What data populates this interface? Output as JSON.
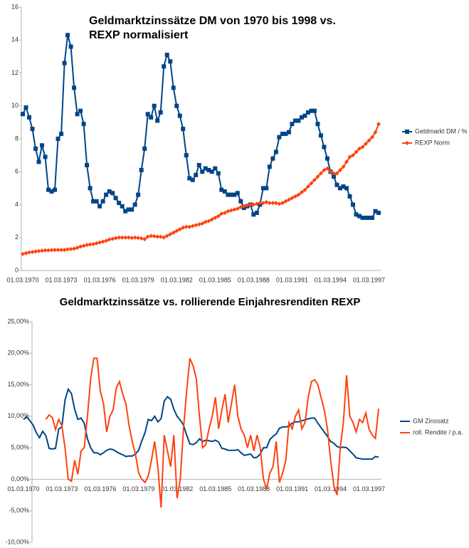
{
  "chart_data": [
    {
      "type": "line",
      "title": [
        "Geldmarktzinssätze DM von 1970 bis 1998 vs.",
        "REXP normalisiert"
      ],
      "categories": [
        "01.03.1970",
        null,
        null,
        null,
        null,
        null,
        null,
        null,
        null,
        null,
        null,
        null,
        "01.03.1973",
        null,
        null,
        null,
        null,
        null,
        null,
        null,
        null,
        null,
        null,
        null,
        "01.03.1976",
        null,
        null,
        null,
        null,
        null,
        null,
        null,
        null,
        null,
        null,
        null,
        "01.03.1979",
        null,
        null,
        null,
        null,
        null,
        null,
        null,
        null,
        null,
        null,
        null,
        "01.03.1982",
        null,
        null,
        null,
        null,
        null,
        null,
        null,
        null,
        null,
        null,
        null,
        "01.03.1985",
        null,
        null,
        null,
        null,
        null,
        null,
        null,
        null,
        null,
        null,
        null,
        "01.03.1988",
        null,
        null,
        null,
        null,
        null,
        null,
        null,
        null,
        null,
        null,
        null,
        "01.03.1991",
        null,
        null,
        null,
        null,
        null,
        null,
        null,
        null,
        null,
        null,
        null,
        "01.03.1994",
        null,
        null,
        null,
        null,
        null,
        null,
        null,
        null,
        null,
        null,
        null,
        "01.03.1997",
        null,
        null,
        null
      ],
      "series": [
        {
          "name": "Geldmarkt DM / %",
          "color": "#004586",
          "marker": "square",
          "values": [
            9.5,
            9.9,
            9.3,
            8.6,
            7.4,
            6.6,
            7.6,
            6.9,
            4.9,
            4.8,
            4.9,
            8.0,
            8.3,
            12.6,
            14.3,
            13.6,
            11.1,
            9.5,
            9.7,
            8.9,
            6.4,
            5.0,
            4.2,
            4.2,
            3.9,
            4.2,
            4.6,
            4.8,
            4.7,
            4.4,
            4.1,
            3.9,
            3.6,
            3.7,
            3.7,
            4.0,
            4.6,
            6.1,
            7.4,
            9.5,
            9.3,
            10.0,
            9.1,
            9.6,
            12.4,
            13.1,
            12.7,
            11.1,
            10.0,
            9.4,
            8.6,
            7.0,
            5.6,
            5.5,
            5.8,
            6.4,
            6.0,
            6.2,
            6.1,
            6.0,
            6.2,
            5.9,
            4.9,
            4.8,
            4.6,
            4.6,
            4.6,
            4.7,
            4.2,
            3.8,
            3.9,
            4.0,
            3.4,
            3.5,
            4.0,
            5.0,
            5.0,
            6.3,
            6.8,
            7.2,
            8.1,
            8.3,
            8.3,
            8.4,
            8.9,
            9.1,
            9.1,
            9.3,
            9.4,
            9.6,
            9.7,
            9.7,
            8.9,
            8.2,
            7.5,
            6.8,
            6.0,
            5.7,
            5.2,
            5.0,
            5.1,
            5.0,
            4.5,
            4.0,
            3.4,
            3.3,
            3.2,
            3.2,
            3.2,
            3.2,
            3.6,
            3.5
          ]
        },
        {
          "name": "REXP Norm",
          "color": "#ff420e",
          "marker": "diamond",
          "values": [
            1.0,
            1.05,
            1.1,
            1.12,
            1.15,
            1.18,
            1.2,
            1.22,
            1.22,
            1.24,
            1.25,
            1.25,
            1.25,
            1.25,
            1.28,
            1.3,
            1.32,
            1.38,
            1.45,
            1.5,
            1.55,
            1.58,
            1.6,
            1.65,
            1.7,
            1.75,
            1.8,
            1.88,
            1.92,
            1.96,
            2.0,
            2.0,
            2.0,
            2.0,
            1.98,
            2.0,
            1.98,
            1.95,
            1.9,
            2.05,
            2.1,
            2.08,
            2.05,
            2.05,
            2.0,
            2.1,
            2.2,
            2.3,
            2.4,
            2.5,
            2.6,
            2.65,
            2.65,
            2.7,
            2.75,
            2.8,
            2.85,
            2.95,
            3.0,
            3.1,
            3.2,
            3.3,
            3.45,
            3.5,
            3.6,
            3.65,
            3.7,
            3.75,
            3.85,
            3.9,
            3.95,
            4.0,
            4.0,
            4.05,
            4.1,
            4.1,
            4.15,
            4.1,
            4.1,
            4.1,
            4.05,
            4.1,
            4.2,
            4.3,
            4.4,
            4.5,
            4.6,
            4.75,
            4.9,
            5.1,
            5.3,
            5.5,
            5.7,
            5.9,
            6.1,
            6.2,
            6.0,
            5.9,
            5.9,
            6.1,
            6.3,
            6.6,
            6.9,
            7.0,
            7.2,
            7.4,
            7.5,
            7.7,
            7.9,
            8.1,
            8.4,
            8.9
          ]
        }
      ],
      "ylim": [
        0,
        16
      ],
      "yticks": [
        0,
        2,
        4,
        6,
        8,
        10,
        12,
        14,
        16
      ],
      "grid": false
    },
    {
      "type": "line",
      "title": [
        "Geldmarktzinssätze vs. rollierende Einjahresrenditen REXP"
      ],
      "categories": [
        "01.03.1970",
        null,
        null,
        null,
        null,
        null,
        null,
        null,
        null,
        null,
        null,
        null,
        "01.03.1973",
        null,
        null,
        null,
        null,
        null,
        null,
        null,
        null,
        null,
        null,
        null,
        "01.03.1976",
        null,
        null,
        null,
        null,
        null,
        null,
        null,
        null,
        null,
        null,
        null,
        "01.03.1979",
        null,
        null,
        null,
        null,
        null,
        null,
        null,
        null,
        null,
        null,
        null,
        "01.03.1982",
        null,
        null,
        null,
        null,
        null,
        null,
        null,
        null,
        null,
        null,
        null,
        "01.03.1985",
        null,
        null,
        null,
        null,
        null,
        null,
        null,
        null,
        null,
        null,
        null,
        "01.03.1988",
        null,
        null,
        null,
        null,
        null,
        null,
        null,
        null,
        null,
        null,
        null,
        "01.03.1991",
        null,
        null,
        null,
        null,
        null,
        null,
        null,
        null,
        null,
        null,
        null,
        "01.03.1994",
        null,
        null,
        null,
        null,
        null,
        null,
        null,
        null,
        null,
        null,
        null,
        "01.03.1997",
        null,
        null,
        null
      ],
      "series": [
        {
          "name": "GM Zinssatz",
          "color": "#004586",
          "values": [
            9.5,
            9.9,
            9.3,
            8.6,
            7.4,
            6.6,
            7.6,
            6.9,
            4.9,
            4.8,
            4.9,
            8.0,
            8.3,
            12.6,
            14.3,
            13.6,
            11.1,
            9.5,
            9.7,
            8.9,
            6.4,
            5.0,
            4.2,
            4.2,
            3.9,
            4.2,
            4.6,
            4.8,
            4.7,
            4.4,
            4.1,
            3.9,
            3.6,
            3.7,
            3.7,
            4.0,
            4.6,
            6.1,
            7.4,
            9.5,
            9.3,
            10.0,
            9.1,
            9.6,
            12.4,
            13.1,
            12.7,
            11.1,
            10.0,
            9.4,
            8.6,
            7.0,
            5.6,
            5.5,
            5.8,
            6.4,
            6.0,
            6.2,
            6.1,
            6.0,
            6.2,
            5.9,
            4.9,
            4.8,
            4.6,
            4.6,
            4.6,
            4.7,
            4.2,
            3.8,
            3.9,
            4.0,
            3.4,
            3.5,
            4.0,
            5.0,
            5.0,
            6.3,
            6.8,
            7.2,
            8.1,
            8.3,
            8.3,
            8.4,
            8.9,
            9.1,
            9.1,
            9.3,
            9.4,
            9.6,
            9.7,
            9.7,
            8.9,
            8.2,
            7.5,
            6.8,
            6.0,
            5.7,
            5.2,
            5.0,
            5.1,
            5.0,
            4.5,
            4.0,
            3.4,
            3.3,
            3.2,
            3.2,
            3.2,
            3.2,
            3.6,
            3.5
          ]
        },
        {
          "name": "roll. Rendite / p.a.",
          "color": "#ff420e",
          "values": [
            null,
            null,
            null,
            null,
            null,
            null,
            null,
            9.5,
            10.2,
            9.8,
            7.9,
            9.5,
            8.5,
            5,
            0,
            -0.3,
            3,
            0.8,
            4.5,
            5,
            10,
            16,
            19.2,
            19.2,
            14,
            12,
            7.5,
            10,
            11,
            14.5,
            15.5,
            13.5,
            12,
            8.5,
            6,
            4,
            1,
            0,
            -0.5,
            0.5,
            3,
            6,
            2,
            -4.5,
            7,
            4.5,
            2,
            7,
            -3,
            0,
            8,
            14,
            19.2,
            18,
            16,
            10,
            5,
            5.5,
            8,
            10,
            13,
            8,
            11,
            13.5,
            9,
            12,
            15,
            10,
            8,
            7,
            5,
            7,
            4.5,
            7,
            5,
            0,
            -1.5,
            1,
            2,
            6,
            -0.5,
            1,
            3,
            9,
            8,
            10,
            11,
            8,
            9,
            13,
            15.5,
            15.8,
            15,
            13,
            11,
            8,
            3,
            -1,
            -2.5,
            5,
            9,
            16.5,
            10,
            9,
            7.5,
            9.5,
            9,
            10.5,
            8,
            7,
            6.5,
            11.2
          ]
        }
      ],
      "ylim": [
        -10,
        25
      ],
      "yticks": [
        {
          "value": -10,
          "label": "-10,00%"
        },
        {
          "value": -5,
          "label": "-5,00%"
        },
        {
          "value": 0,
          "label": "0,00%"
        },
        {
          "value": 5,
          "label": "5,00%"
        },
        {
          "value": 10,
          "label": "10,00%"
        },
        {
          "value": 15,
          "label": "15,00%"
        },
        {
          "value": 20,
          "label": "20,00%"
        },
        {
          "value": 25,
          "label": "25,00%"
        }
      ],
      "grid": false
    }
  ]
}
